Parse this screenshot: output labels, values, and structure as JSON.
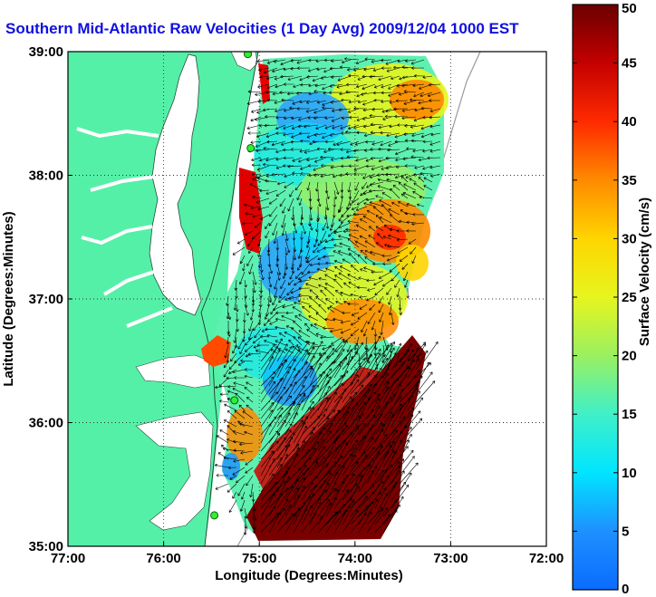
{
  "title": "Southern Mid-Atlantic Raw Velocities (1 Day Avg) 2009/12/04 1000 EST",
  "map": {
    "xlabel": "Longitude (Degrees:Minutes)",
    "ylabel": "Latitude (Degrees:Minutes)",
    "xlim": [
      -77,
      -72
    ],
    "ylim": [
      35,
      39
    ],
    "x_ticks": [
      "77:00",
      "76:00",
      "75:00",
      "74:00",
      "73:00",
      "72:00"
    ],
    "y_ticks": [
      "35:00",
      "36:00",
      "37:00",
      "38:00",
      "39:00"
    ],
    "grid": "dotted",
    "land_color": "#55f0a8",
    "water_color": "#ffffff"
  },
  "colorbar": {
    "label": "Surface Velocity (cm/s)",
    "min": 0,
    "max": 50,
    "tick_labels": [
      "0",
      "5",
      "10",
      "15",
      "20",
      "25",
      "30",
      "35",
      "40",
      "45",
      "50"
    ]
  },
  "stations": [
    {
      "lon": -75.12,
      "lat": 38.98
    },
    {
      "lon": -75.09,
      "lat": 38.22
    },
    {
      "lon": -75.26,
      "lat": 36.18
    },
    {
      "lon": -75.47,
      "lat": 35.25
    }
  ]
}
